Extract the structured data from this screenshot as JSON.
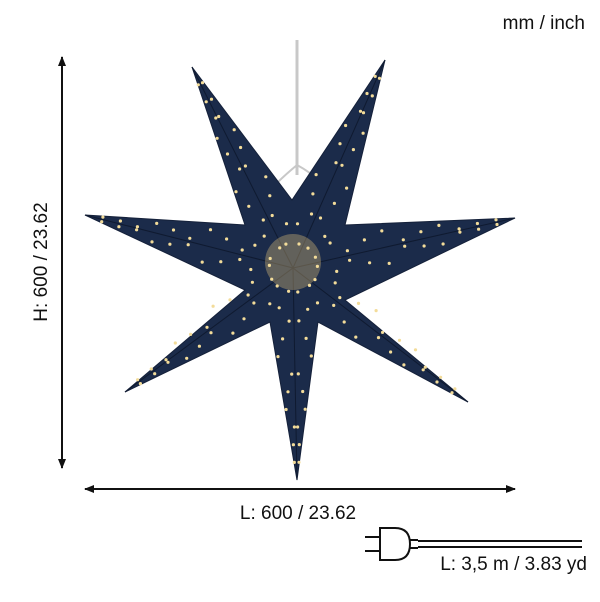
{
  "units_label": "mm / inch",
  "height_label": "H: 600 / 23.62",
  "length_label": "L: 600 / 23.62",
  "cable_label": "L: 3,5 m / 3.83 yd"
}
